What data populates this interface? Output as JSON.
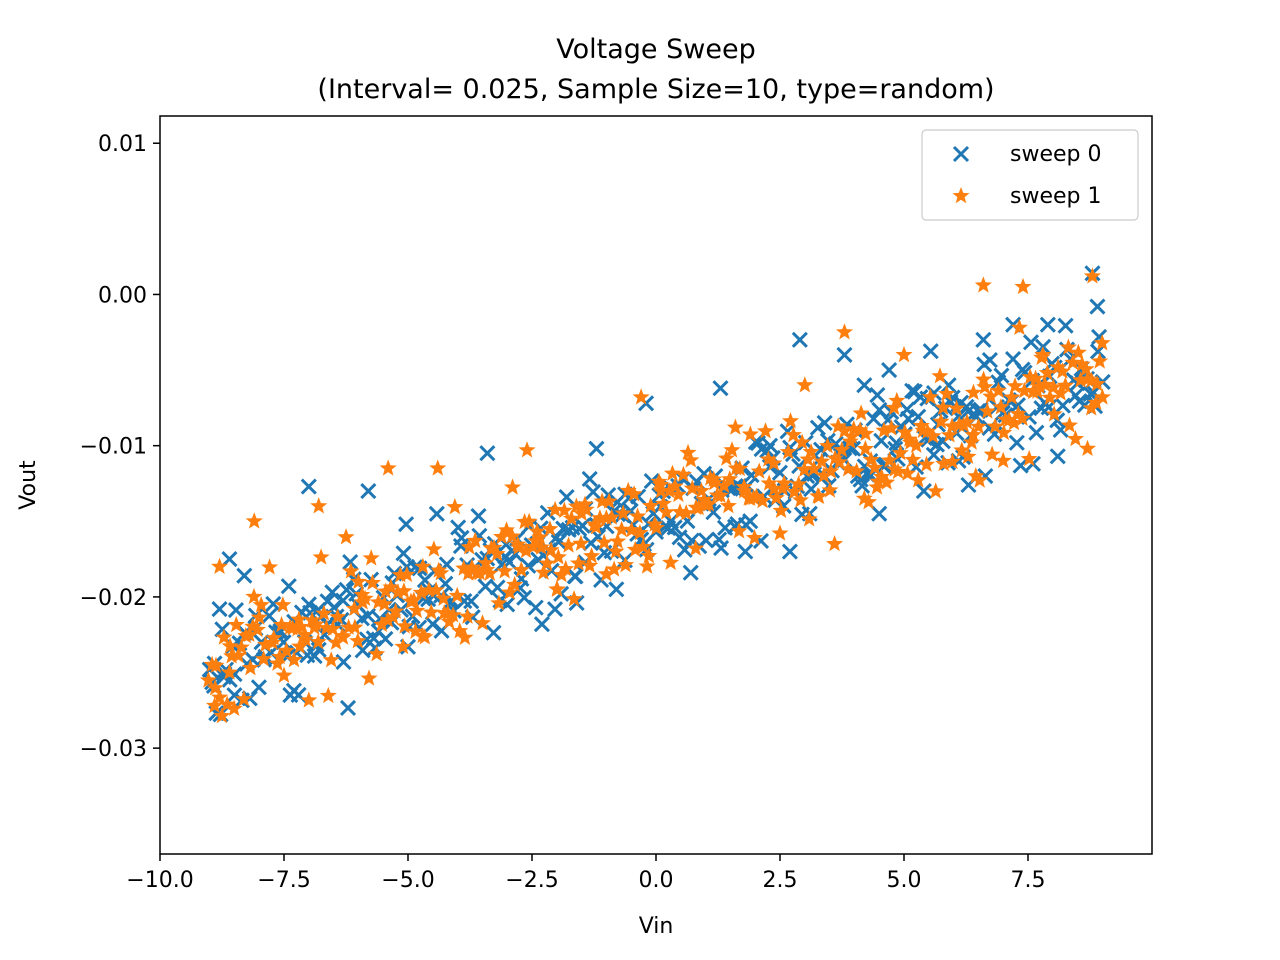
{
  "chart_data": {
    "type": "scatter",
    "title": "Voltage Sweep",
    "subtitle": "(Interval= 0.025, Sample Size=10, type=random)",
    "xlabel": "Vin",
    "ylabel": "Vout",
    "xlim": [
      -10.0,
      10.0
    ],
    "ylim": [
      -0.037,
      0.0118
    ],
    "x_ticks": [
      -10.0,
      -7.5,
      -5.0,
      -2.5,
      0.0,
      2.5,
      5.0,
      7.5
    ],
    "x_tick_labels": [
      "−10.0",
      "−7.5",
      "−5.0",
      "−2.5",
      "0.0",
      "2.5",
      "5.0",
      "7.5"
    ],
    "y_ticks": [
      0.01,
      0.0,
      -0.01,
      -0.02,
      -0.03
    ],
    "y_tick_labels": [
      "0.01",
      "0.00",
      "−0.01",
      "−0.02",
      "−0.03"
    ],
    "grid": false,
    "legend_position": "top-right",
    "sample_interval": 0.025,
    "x_range": [
      -9.0,
      9.0
    ],
    "trend": {
      "slope": 0.00105,
      "intercept": -0.0147,
      "noise_sd": 0.0019
    },
    "series": [
      {
        "name": "sweep 0",
        "marker": "x",
        "color": "#1f77b4",
        "points": [
          [
            -8.9,
            -0.0244
          ],
          [
            -8.7,
            -0.0251
          ],
          [
            -8.5,
            -0.0265
          ],
          [
            -8.8,
            -0.0208
          ],
          [
            -8.3,
            -0.0186
          ],
          [
            -7.3,
            -0.0262
          ],
          [
            -7.0,
            -0.0127
          ],
          [
            -6.3,
            -0.0243
          ],
          [
            -5.8,
            -0.013
          ],
          [
            -5.0,
            -0.0233
          ],
          [
            -4.5,
            -0.0218
          ],
          [
            -3.4,
            -0.0105
          ],
          [
            -2.3,
            -0.0218
          ],
          [
            -1.6,
            -0.0204
          ],
          [
            -1.2,
            -0.0102
          ],
          [
            -0.2,
            -0.0072
          ],
          [
            0.7,
            -0.0184
          ],
          [
            1.3,
            -0.0062
          ],
          [
            1.8,
            -0.017
          ],
          [
            2.7,
            -0.017
          ],
          [
            2.9,
            -0.003
          ],
          [
            3.1,
            -0.0145
          ],
          [
            3.8,
            -0.004
          ],
          [
            4.5,
            -0.0145
          ],
          [
            4.7,
            -0.005
          ],
          [
            5.4,
            -0.013
          ],
          [
            6.1,
            -0.011
          ],
          [
            6.3,
            -0.0126
          ],
          [
            7.6,
            -0.0112
          ],
          [
            8.1,
            -0.0107
          ],
          [
            8.8,
            0.0014
          ],
          [
            8.9,
            -0.0008
          ],
          [
            7.9,
            -0.002
          ],
          [
            7.2,
            -0.002
          ],
          [
            6.6,
            -0.003
          ],
          [
            5.9,
            -0.006
          ],
          [
            5.6,
            -0.0106
          ],
          [
            4.2,
            -0.006
          ],
          [
            3.4,
            -0.0085
          ],
          [
            2.3,
            -0.01
          ],
          [
            0.3,
            -0.015
          ],
          [
            -0.8,
            -0.0195
          ],
          [
            -3.0,
            -0.0205
          ],
          [
            -6.8,
            -0.0235
          ],
          [
            -8.6,
            -0.0175
          ]
        ]
      },
      {
        "name": "sweep 1",
        "marker": "star",
        "color": "#ff7f0e",
        "points": [
          [
            -8.9,
            -0.0272
          ],
          [
            -8.6,
            -0.025
          ],
          [
            -7.5,
            -0.0252
          ],
          [
            -8.1,
            -0.015
          ],
          [
            -6.8,
            -0.014
          ],
          [
            -5.1,
            -0.0233
          ],
          [
            -5.4,
            -0.0115
          ],
          [
            -4.4,
            -0.0115
          ],
          [
            -3.8,
            -0.0213
          ],
          [
            -2.6,
            -0.0103
          ],
          [
            -2.0,
            -0.0195
          ],
          [
            -1.0,
            -0.0185
          ],
          [
            -0.3,
            -0.0068
          ],
          [
            0.8,
            -0.0168
          ],
          [
            1.6,
            -0.0088
          ],
          [
            2.5,
            -0.0158
          ],
          [
            3.6,
            -0.0165
          ],
          [
            4.2,
            -0.0135
          ],
          [
            3.8,
            -0.0025
          ],
          [
            5.0,
            -0.004
          ],
          [
            5.8,
            -0.0112
          ],
          [
            6.6,
            0.0006
          ],
          [
            7.0,
            -0.011
          ],
          [
            7.8,
            -0.004
          ],
          [
            8.7,
            -0.0102
          ],
          [
            8.8,
            0.0012
          ],
          [
            9.0,
            -0.0068
          ],
          [
            7.4,
            0.0005
          ],
          [
            6.4,
            -0.0065
          ],
          [
            4.8,
            -0.0075
          ],
          [
            3.0,
            -0.006
          ],
          [
            1.9,
            -0.0135
          ],
          [
            0.1,
            -0.013
          ],
          [
            -1.5,
            -0.0145
          ],
          [
            -2.9,
            -0.016
          ],
          [
            -4.7,
            -0.018
          ],
          [
            -6.0,
            -0.019
          ],
          [
            -7.2,
            -0.0215
          ],
          [
            -8.2,
            -0.0225
          ],
          [
            -8.8,
            -0.018
          ]
        ]
      }
    ]
  }
}
